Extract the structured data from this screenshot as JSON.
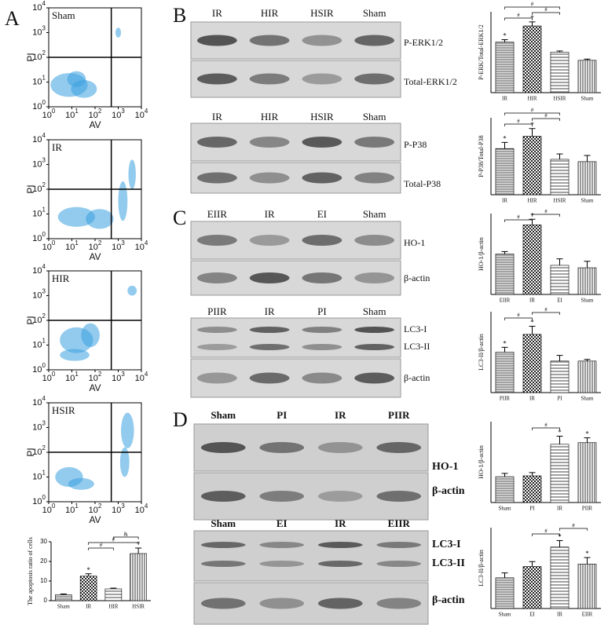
{
  "panels": [
    {
      "letter": "A",
      "flow_plots": [
        {
          "label": "Sham",
          "x_label": "AV",
          "y_label": "PI",
          "gate": {
            "x": 2.7,
            "y": 2
          }
        },
        {
          "label": "IR",
          "x_label": "AV",
          "y_label": "PI",
          "gate": {
            "x": 2.7,
            "y": 2
          }
        },
        {
          "label": "HIR",
          "x_label": "AV",
          "y_label": "PI",
          "gate": {
            "x": 2.7,
            "y": 2
          }
        },
        {
          "label": "HSIR",
          "x_label": "AV",
          "y_label": "PI",
          "gate": {
            "x": 2.7,
            "y": 2
          }
        }
      ],
      "flow_lim": [
        0,
        4
      ],
      "flow_ticks": [
        {
          "value": 0,
          "base": "10",
          "exp": "0"
        },
        {
          "value": 1,
          "base": "10",
          "exp": "1"
        },
        {
          "value": 2,
          "base": "10",
          "exp": "2"
        },
        {
          "value": 3,
          "base": "10",
          "exp": "3"
        },
        {
          "value": 4,
          "base": "10",
          "exp": "4"
        }
      ],
      "charts": [
        {
          "type": "bar",
          "y_label": "The apoptosis ratio of cells",
          "categories": [
            "Sham",
            "IR",
            "HIR",
            "HSIR"
          ],
          "values": [
            3,
            12.5,
            6,
            24
          ],
          "errors": [
            0.4,
            1.2,
            0.4,
            2.8
          ],
          "ylim": [
            0,
            30
          ],
          "yticks": [
            0,
            10,
            20,
            30
          ],
          "stars": [
            {
              "index": 1,
              "text": "*"
            },
            {
              "index": 3,
              "text": "*"
            }
          ],
          "brackets": [
            {
              "from": 1,
              "to": 2,
              "text": "#"
            },
            {
              "from": 1,
              "to": 3,
              "text": "#"
            },
            {
              "from": 2,
              "to": 3,
              "text": "&"
            }
          ]
        }
      ]
    },
    {
      "letter": "B",
      "blots": [
        {
          "lanes": [
            "IR",
            "HIR",
            "HSIR",
            "Sham"
          ],
          "rows": [
            [
              "P-ERK1/2"
            ],
            [
              "Total-ERK1/2"
            ]
          ]
        },
        {
          "lanes": [
            "IR",
            "HIR",
            "HSIR",
            "Sham"
          ],
          "rows": [
            [
              "P-P38"
            ],
            [
              "Total-P38"
            ]
          ]
        }
      ],
      "charts": [
        {
          "type": "bar",
          "y_label": "P-ERK/Total-ERK1/2",
          "categories": [
            "IR",
            "HIR",
            "HSIR",
            "Sham"
          ],
          "values": [
            1.25,
            1.65,
            1.0,
            0.8
          ],
          "errors": [
            0.06,
            0.1,
            0.03,
            0.03
          ],
          "ylim": [
            0,
            2
          ],
          "stars": [
            {
              "index": 0,
              "text": "*"
            },
            {
              "index": 1,
              "text": "*"
            }
          ],
          "brackets": [
            {
              "from": 0,
              "to": 1,
              "text": "#"
            },
            {
              "from": 1,
              "to": 2,
              "text": "#"
            },
            {
              "from": 0,
              "to": 2,
              "text": "#"
            }
          ]
        },
        {
          "type": "bar",
          "y_label": "P-P38/Total-P38",
          "categories": [
            "IR",
            "HIR",
            "HSIR",
            "Sham"
          ],
          "values": [
            0.6,
            0.76,
            0.46,
            0.43
          ],
          "errors": [
            0.08,
            0.1,
            0.07,
            0.08
          ],
          "ylim": [
            0,
            1
          ],
          "stars": [
            {
              "index": 0,
              "text": "*"
            },
            {
              "index": 1,
              "text": "*"
            }
          ],
          "brackets": [
            {
              "from": 0,
              "to": 1,
              "text": "#"
            },
            {
              "from": 1,
              "to": 2,
              "text": "#"
            },
            {
              "from": 0,
              "to": 2,
              "text": "#"
            }
          ]
        }
      ]
    },
    {
      "letter": "C",
      "blots": [
        {
          "lanes": [
            "EIIR",
            "IR",
            "EI",
            "Sham"
          ],
          "rows": [
            [
              "HO-1"
            ],
            [
              "β-actin"
            ]
          ]
        },
        {
          "lanes": [
            "PIIR",
            "IR",
            "PI",
            "Sham"
          ],
          "rows": [
            [
              "LC3-I",
              "LC3-II"
            ],
            [
              "β-actin"
            ]
          ]
        }
      ],
      "charts": [
        {
          "type": "bar",
          "y_label": "HO-1/β-actin",
          "categories": [
            "EIIR",
            "IR",
            "EI",
            "Sham"
          ],
          "values": [
            0.5,
            0.86,
            0.36,
            0.33
          ],
          "errors": [
            0.03,
            0.07,
            0.08,
            0.08
          ],
          "ylim": [
            0,
            1
          ],
          "stars": [
            {
              "index": 1,
              "text": "*"
            }
          ],
          "brackets": [
            {
              "from": 0,
              "to": 1,
              "text": "#"
            },
            {
              "from": 1,
              "to": 2,
              "text": "#"
            }
          ]
        },
        {
          "type": "bar",
          "y_label": "LC3-II/β-actin",
          "categories": [
            "PIIR",
            "IR",
            "PI",
            "Sham"
          ],
          "values": [
            0.5,
            0.72,
            0.39,
            0.39
          ],
          "errors": [
            0.06,
            0.1,
            0.07,
            0.02
          ],
          "ylim": [
            0,
            1
          ],
          "stars": [
            {
              "index": 0,
              "text": "*"
            },
            {
              "index": 1,
              "text": "*"
            }
          ],
          "brackets": [
            {
              "from": 0,
              "to": 1,
              "text": "#"
            },
            {
              "from": 1,
              "to": 2,
              "text": "#"
            }
          ]
        }
      ]
    },
    {
      "letter": "D",
      "blots": [
        {
          "lanes": [
            "Sham",
            "PI",
            "IR",
            "PIIR"
          ],
          "rows": [
            [
              "HO-1"
            ],
            [
              "β-actin"
            ]
          ]
        },
        {
          "lanes": [
            "Sham",
            "EI",
            "IR",
            "EIIR"
          ],
          "rows": [
            [
              "LC3-I",
              "LC3-II"
            ],
            [
              "β-actin"
            ]
          ]
        }
      ],
      "charts": [
        {
          "type": "bar",
          "y_label": "HO-1/β-actin",
          "categories": [
            "Sham",
            "PI",
            "IR",
            "PIIR"
          ],
          "values": [
            0.32,
            0.33,
            0.72,
            0.74
          ],
          "errors": [
            0.04,
            0.04,
            0.1,
            0.06
          ],
          "ylim": [
            0,
            1
          ],
          "stars": [
            {
              "index": 2,
              "text": "*"
            },
            {
              "index": 3,
              "text": "*"
            }
          ],
          "brackets": [
            {
              "from": 1,
              "to": 2,
              "text": "#"
            }
          ]
        },
        {
          "type": "bar",
          "y_label": "LC3-II/β-actin",
          "categories": [
            "Sham",
            "EI",
            "IR",
            "EIIR"
          ],
          "values": [
            0.38,
            0.52,
            0.76,
            0.55
          ],
          "errors": [
            0.06,
            0.06,
            0.08,
            0.08
          ],
          "ylim": [
            0,
            1
          ],
          "stars": [
            {
              "index": 2,
              "text": "*"
            },
            {
              "index": 3,
              "text": "*"
            }
          ],
          "brackets": [
            {
              "from": 1,
              "to": 2,
              "text": "#"
            },
            {
              "from": 2,
              "to": 3,
              "text": "#"
            }
          ]
        }
      ]
    }
  ]
}
